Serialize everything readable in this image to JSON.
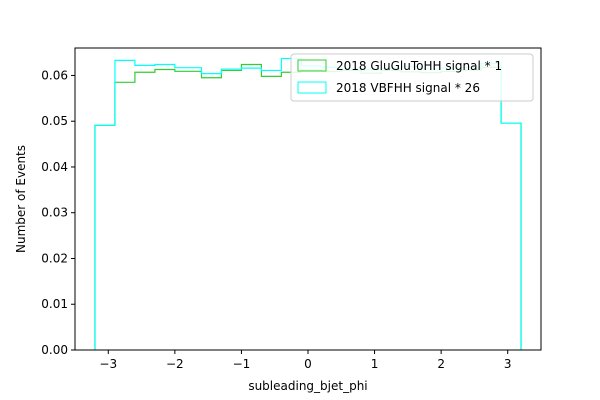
{
  "chart_data": {
    "type": "histogram",
    "xlabel": "subleading_bjet_phi",
    "ylabel": "Number of Events",
    "xlim": [
      -3.5,
      3.5
    ],
    "ylim": [
      0.0,
      0.066
    ],
    "grid": false,
    "legend_position": "upper right",
    "x_ticks": [
      -3,
      -2,
      -1,
      0,
      1,
      2,
      3
    ],
    "x_tick_labels": [
      "−3",
      "−2",
      "−1",
      "0",
      "1",
      "2",
      "3"
    ],
    "y_ticks": [
      0.0,
      0.01,
      0.02,
      0.03,
      0.04,
      0.05,
      0.06
    ],
    "y_tick_labels": [
      "0.00",
      "0.01",
      "0.02",
      "0.03",
      "0.04",
      "0.05",
      "0.06"
    ],
    "bin_edges": [
      -3.2,
      -2.9,
      -2.6,
      -2.3,
      -2.0,
      -1.6,
      -1.3,
      -1.0,
      -0.7,
      -0.4,
      -0.1,
      0.2,
      0.5,
      0.8,
      1.1,
      1.4,
      1.7,
      2.0,
      2.3,
      2.6,
      2.9,
      3.2
    ],
    "series": [
      {
        "name": "2018 GluGluToHH signal * 1",
        "color": "#32cd32",
        "values": [
          0.0491,
          0.0585,
          0.0607,
          0.0613,
          0.0609,
          0.0595,
          0.0611,
          0.0624,
          0.0598,
          0.0607,
          0.0612,
          0.0609,
          0.0611,
          0.0605,
          0.0611,
          0.0608,
          0.0606,
          0.0609,
          0.0612,
          0.0618,
          0.0496
        ]
      },
      {
        "name": "2018 VBFHH signal * 26",
        "color": "#00ffff",
        "values": [
          0.0491,
          0.0633,
          0.0622,
          0.0624,
          0.0617,
          0.0604,
          0.0614,
          0.0616,
          0.0611,
          0.0637,
          0.0621,
          0.0618,
          0.0615,
          0.0612,
          0.0616,
          0.0619,
          0.0614,
          0.0616,
          0.0618,
          0.0626,
          0.0496
        ]
      }
    ]
  }
}
